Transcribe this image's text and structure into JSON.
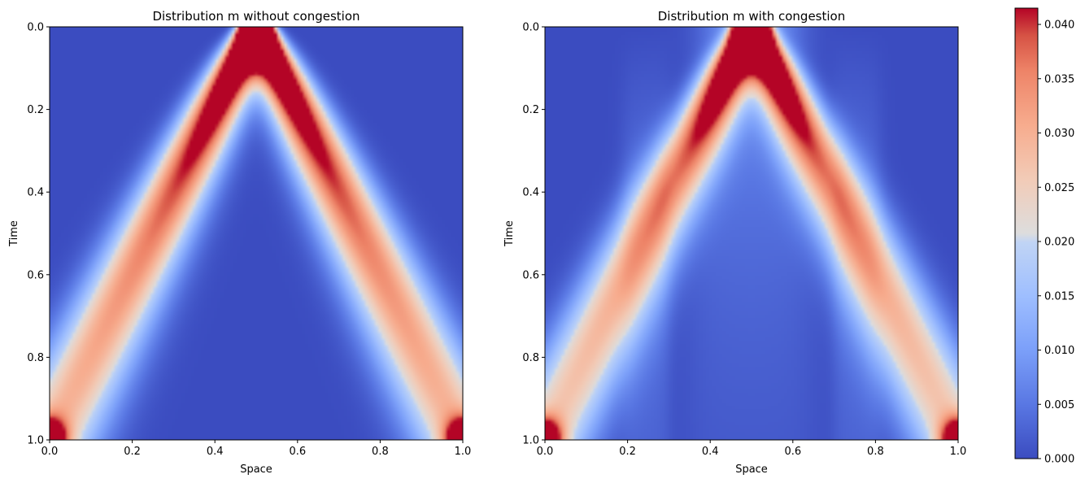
{
  "chart_data": [
    {
      "type": "heatmap",
      "title": "Distribution m without congestion",
      "xlabel": "Space",
      "ylabel": "Time",
      "xlim": [
        0.0,
        1.0
      ],
      "ylim": [
        1.0,
        0.0
      ],
      "x_ticks": [
        "0.0",
        "0.2",
        "0.4",
        "0.6",
        "0.8",
        "1.0"
      ],
      "y_ticks": [
        "0.0",
        "0.2",
        "0.4",
        "0.6",
        "0.8",
        "1.0"
      ],
      "colormap": "coolwarm",
      "peaks": [
        {
          "x": 0.5,
          "t": 0.0,
          "value": 0.041
        },
        {
          "x": 0.0,
          "t": 1.0,
          "value": 0.036
        },
        {
          "x": 1.0,
          "t": 1.0,
          "value": 0.036
        }
      ],
      "description_of_ridges": "density spreads from x=0.5 at t=0 toward x=0 and x=1 at t=1 along two diagonal bands"
    },
    {
      "type": "heatmap",
      "title": "Distribution m with congestion",
      "xlabel": "Space",
      "ylabel": "Time",
      "xlim": [
        0.0,
        1.0
      ],
      "ylim": [
        1.0,
        0.0
      ],
      "x_ticks": [
        "0.0",
        "0.2",
        "0.4",
        "0.6",
        "0.8",
        "1.0"
      ],
      "y_ticks": [
        "0.0",
        "0.2",
        "0.4",
        "0.6",
        "0.8",
        "1.0"
      ],
      "colormap": "coolwarm",
      "peaks": [
        {
          "x": 0.5,
          "t": 0.0,
          "value": 0.041
        },
        {
          "x": 0.0,
          "t": 1.0,
          "value": 0.036
        },
        {
          "x": 1.0,
          "t": 1.0,
          "value": 0.036
        }
      ],
      "description_of_ridges": "central plateau broadens to x in [0.3,0.7] and outer bands near x=0.2 and x=0.8 before reaching corners"
    }
  ],
  "colorbar": {
    "min": 0.0,
    "max": 0.0415,
    "ticks": [
      "0.000",
      "0.005",
      "0.010",
      "0.015",
      "0.020",
      "0.025",
      "0.030",
      "0.035",
      "0.040"
    ],
    "tick_values": [
      0.0,
      0.005,
      0.01,
      0.015,
      0.02,
      0.025,
      0.03,
      0.035,
      0.04
    ],
    "colors": {
      "low": "#3b4cc0",
      "mid": "#dddddd",
      "high": "#b40426"
    }
  }
}
